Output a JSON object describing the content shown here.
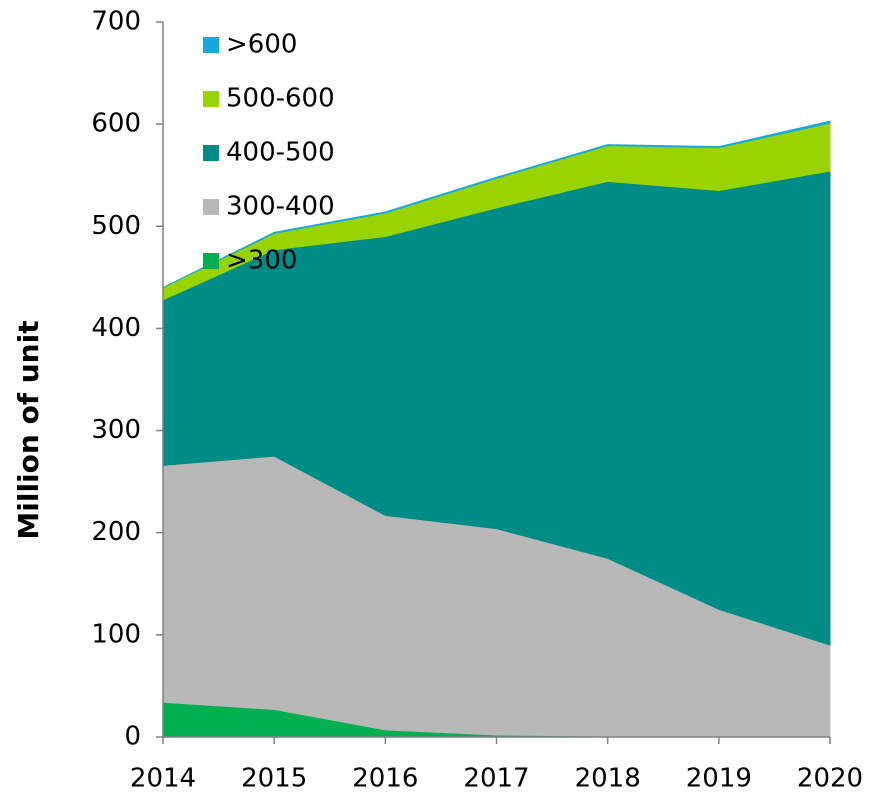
{
  "chart_data": {
    "type": "stacked-area",
    "y_label": "Million of unit",
    "categories": [
      "2014",
      "2015",
      "2016",
      "2017",
      "2018",
      "2019",
      "2020"
    ],
    "series": [
      {
        "name": ">300",
        "color": "#00b050",
        "values": [
          34,
          27,
          7,
          2,
          1,
          0,
          0
        ]
      },
      {
        "name": "300-400",
        "color": "#b8b8b8",
        "values": [
          232,
          248,
          210,
          202,
          174,
          125,
          90
        ]
      },
      {
        "name": "400-500",
        "color": "#008c86",
        "values": [
          162,
          202,
          273,
          314,
          369,
          410,
          464
        ]
      },
      {
        "name": "500-600",
        "color": "#99d400",
        "values": [
          12,
          16,
          23,
          29,
          35,
          42,
          47
        ]
      },
      {
        "name": ">600",
        "color": "#1aa7e0",
        "values": [
          0,
          1,
          1,
          1,
          1,
          1,
          2
        ]
      }
    ],
    "ylim": [
      0,
      700
    ],
    "yticks": [
      0,
      100,
      200,
      300,
      400,
      500,
      600,
      700
    ],
    "legend": "upper left"
  }
}
